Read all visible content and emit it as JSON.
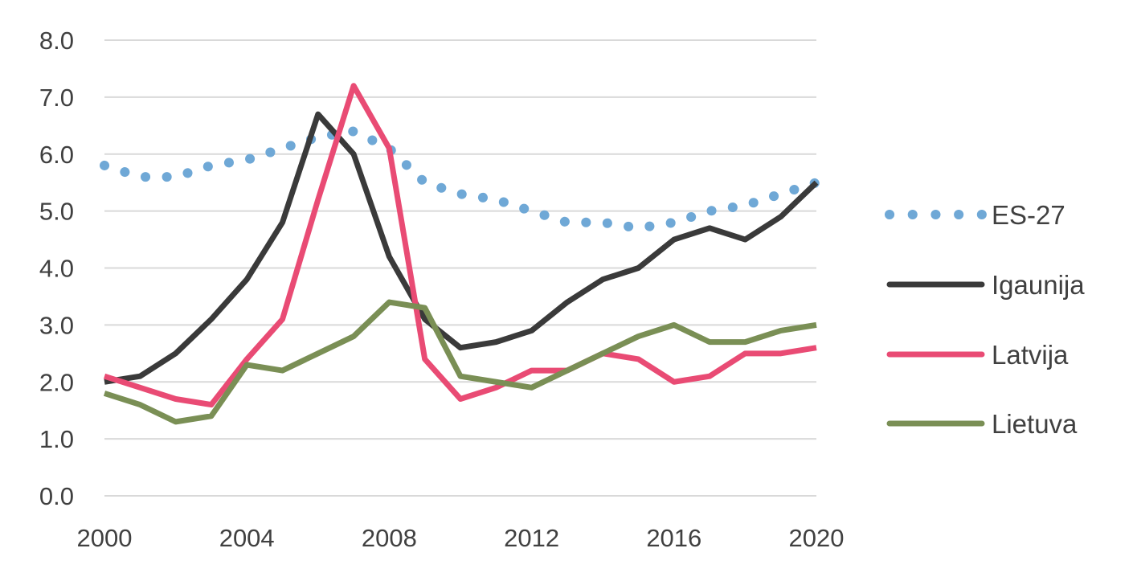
{
  "chart_data": {
    "type": "line",
    "title": "",
    "xlabel": "",
    "ylabel": "",
    "x": [
      2000,
      2001,
      2002,
      2003,
      2004,
      2005,
      2006,
      2007,
      2008,
      2009,
      2010,
      2011,
      2012,
      2013,
      2014,
      2015,
      2016,
      2017,
      2018,
      2019,
      2020
    ],
    "xlim": [
      2000,
      2020
    ],
    "ylim": [
      0,
      8
    ],
    "y_ticks": [
      "0.0",
      "1.0",
      "2.0",
      "3.0",
      "4.0",
      "5.0",
      "6.0",
      "7.0",
      "8.0"
    ],
    "x_ticks": [
      "2000",
      "2004",
      "2008",
      "2012",
      "2016",
      "2020"
    ],
    "grid": true,
    "legend_position": "right",
    "series": [
      {
        "name": "ES-27",
        "style": "dotted",
        "color": "#6fa8d6",
        "values": [
          5.8,
          5.6,
          5.6,
          5.8,
          5.9,
          6.1,
          6.3,
          6.4,
          6.1,
          5.5,
          5.3,
          5.2,
          5.0,
          4.8,
          4.8,
          4.7,
          4.8,
          5.0,
          5.1,
          5.3,
          5.5
        ]
      },
      {
        "name": "Igaunija",
        "style": "solid",
        "color": "#3a3a3a",
        "values": [
          2.0,
          2.1,
          2.5,
          3.1,
          3.8,
          4.8,
          6.7,
          6.0,
          4.2,
          3.1,
          2.6,
          2.7,
          2.9,
          3.4,
          3.8,
          4.0,
          4.5,
          4.7,
          4.5,
          4.9,
          5.5
        ]
      },
      {
        "name": "Latvija",
        "style": "solid",
        "color": "#e94b74",
        "values": [
          2.1,
          1.9,
          1.7,
          1.6,
          2.4,
          3.1,
          5.2,
          7.2,
          6.1,
          2.4,
          1.7,
          1.9,
          2.2,
          2.2,
          2.5,
          2.4,
          2.0,
          2.1,
          2.5,
          2.5,
          2.6
        ]
      },
      {
        "name": "Lietuva",
        "style": "solid",
        "color": "#7a8f55",
        "values": [
          1.8,
          1.6,
          1.3,
          1.4,
          2.3,
          2.2,
          2.5,
          2.8,
          3.4,
          3.3,
          2.1,
          2.0,
          1.9,
          2.2,
          2.5,
          2.8,
          3.0,
          2.7,
          2.7,
          2.9,
          3.0
        ]
      }
    ]
  }
}
